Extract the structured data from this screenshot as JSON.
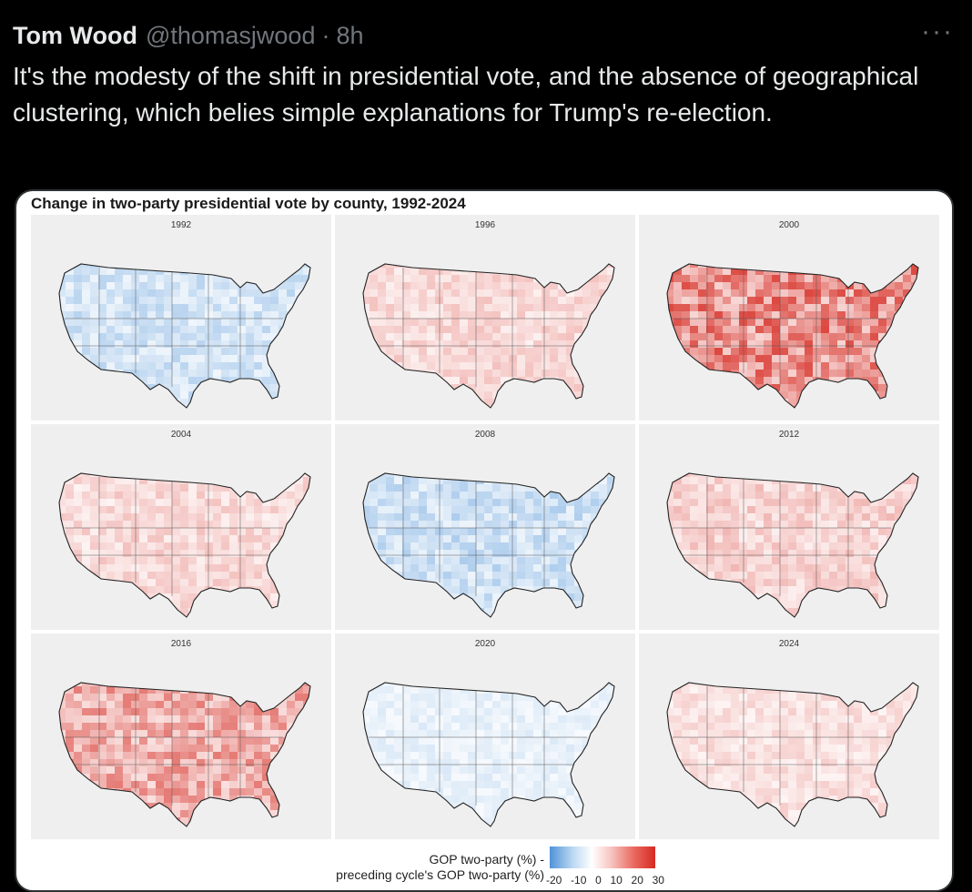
{
  "tweet": {
    "author": "Tom Wood",
    "handle": "@thomasjwood",
    "separator": "·",
    "time": "8h",
    "more": "···",
    "text": "It's the modesty of the shift in presidential vote, and the absence of geographical clustering, which belies simple explanations for Trump's re-election."
  },
  "figure": {
    "title": "Change in two-party presidential vote by county, 1992-2024",
    "panels": [
      {
        "year": "1992",
        "tone": "blue",
        "intensity": 0.35
      },
      {
        "year": "1996",
        "tone": "red",
        "intensity": 0.25
      },
      {
        "year": "2000",
        "tone": "red",
        "intensity": 0.75
      },
      {
        "year": "2004",
        "tone": "red",
        "intensity": 0.25
      },
      {
        "year": "2008",
        "tone": "blue",
        "intensity": 0.4
      },
      {
        "year": "2012",
        "tone": "red",
        "intensity": 0.3
      },
      {
        "year": "2016",
        "tone": "red",
        "intensity": 0.55
      },
      {
        "year": "2020",
        "tone": "blue",
        "intensity": 0.18
      },
      {
        "year": "2024",
        "tone": "red",
        "intensity": 0.2
      }
    ],
    "legend": {
      "label_line1": "GOP two-party (%) -",
      "label_line2": "preceding cycle's GOP two-party (%)",
      "ticks": [
        "-20",
        "-10",
        "0",
        "10",
        "20",
        "30"
      ]
    }
  },
  "colors": {
    "blue": "#4f93d8",
    "red": "#d62b22",
    "background": "#000000"
  }
}
